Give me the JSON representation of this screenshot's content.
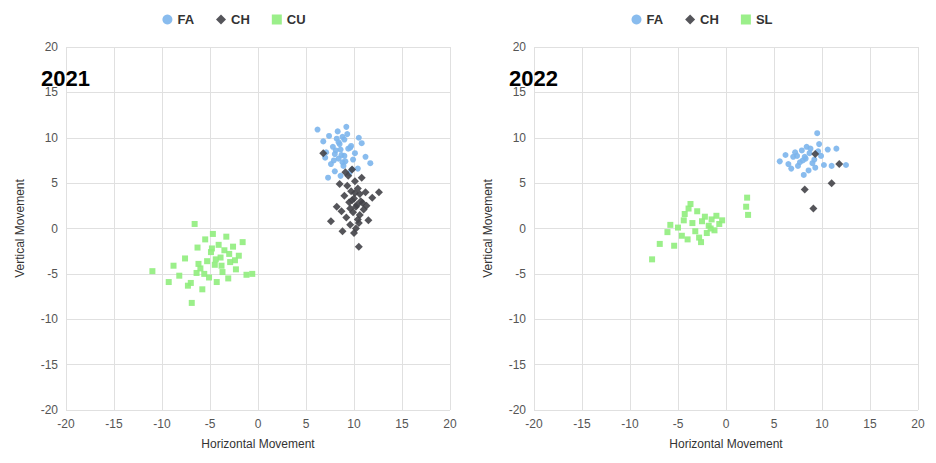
{
  "chart_data": [
    {
      "type": "scatter",
      "title": "2021",
      "x_label": "Horizontal Movement",
      "y_label": "Vertical Movement",
      "xlim": [
        -20,
        20
      ],
      "xticks": [
        -20,
        -15,
        -10,
        -5,
        0,
        5,
        10,
        15,
        20
      ],
      "ylim": [
        -20,
        20
      ],
      "yticks": [
        -20,
        -15,
        -10,
        -5,
        0,
        5,
        10,
        15,
        20
      ],
      "grid": true,
      "legend": "top",
      "series": [
        {
          "name": "FA",
          "color": "#7cb5ec",
          "marker": "circle",
          "x": [
            6.2,
            6.8,
            7.1,
            7.4,
            7.6,
            7.8,
            8.0,
            8.1,
            8.3,
            8.4,
            8.5,
            8.6,
            8.7,
            8.8,
            8.9,
            9.0,
            9.1,
            9.2,
            9.4,
            9.5,
            9.7,
            9.9,
            10.1,
            10.4,
            10.8,
            11.2,
            11.7,
            7.3,
            7.9,
            8.2,
            8.6,
            9.3,
            9.8,
            8.0,
            8.8,
            9.6,
            7.0,
            10.5,
            8.4,
            9.0
          ],
          "values": [
            10.9,
            9.6,
            8.4,
            10.2,
            7.1,
            9.0,
            6.3,
            8.6,
            10.7,
            7.7,
            9.3,
            5.8,
            8.1,
            10.1,
            6.9,
            9.8,
            7.4,
            11.2,
            8.8,
            6.1,
            9.1,
            7.6,
            8.3,
            6.6,
            9.4,
            7.9,
            7.2,
            5.6,
            7.5,
            9.9,
            8.7,
            10.4,
            6.5,
            8.2,
            7.3,
            8.9,
            7.8,
            10.0,
            9.5,
            8.0
          ]
        },
        {
          "name": "CH",
          "color": "#434348",
          "marker": "diamond",
          "x": [
            6.8,
            7.6,
            8.2,
            8.5,
            8.8,
            9.0,
            9.2,
            9.4,
            9.5,
            9.6,
            9.7,
            9.8,
            9.9,
            10.0,
            10.1,
            10.2,
            10.3,
            10.4,
            10.5,
            10.6,
            10.7,
            10.8,
            11.0,
            11.2,
            11.5,
            11.9,
            12.6,
            9.1,
            9.6,
            10.0,
            10.4,
            10.9,
            9.3,
            9.8,
            10.2,
            10.6,
            8.7,
            10.5,
            11.3,
            10.1
          ],
          "values": [
            8.3,
            0.8,
            2.4,
            4.9,
            -0.3,
            3.6,
            1.2,
            5.8,
            2.9,
            0.4,
            4.1,
            6.5,
            1.8,
            3.3,
            5.2,
            0.0,
            2.6,
            4.4,
            -2.0,
            1.5,
            3.0,
            5.6,
            2.1,
            4.0,
            0.9,
            3.4,
            4.0,
            6.2,
            2.2,
            -0.5,
            1.0,
            2.8,
            4.7,
            3.1,
            2.4,
            3.8,
            1.9,
            0.6,
            2.5,
            3.9
          ]
        },
        {
          "name": "CU",
          "color": "#90ed7d",
          "marker": "square",
          "x": [
            -11.0,
            -9.3,
            -8.8,
            -8.2,
            -7.6,
            -7.3,
            -6.9,
            -6.6,
            -6.3,
            -6.0,
            -5.8,
            -5.5,
            -5.3,
            -5.1,
            -4.9,
            -4.7,
            -4.5,
            -4.3,
            -4.1,
            -3.9,
            -3.7,
            -3.5,
            -3.3,
            -3.1,
            -2.9,
            -2.6,
            -2.3,
            -2.0,
            -1.6,
            -1.2,
            -0.6,
            -6.2,
            -5.6,
            -4.4,
            -3.8,
            -3.0,
            -2.4,
            -4.8,
            -7.0,
            -6.4
          ],
          "values": [
            -4.7,
            -5.9,
            -4.1,
            -5.2,
            -3.3,
            -6.3,
            -8.2,
            0.5,
            -2.1,
            -4.4,
            -6.7,
            -1.2,
            -3.6,
            -5.4,
            -2.6,
            -0.6,
            -4.0,
            -5.9,
            -1.8,
            -3.2,
            -4.8,
            -2.4,
            -0.9,
            -5.5,
            -3.7,
            -2.0,
            -4.5,
            -3.0,
            -1.5,
            -5.1,
            -5.0,
            -3.9,
            -5.0,
            -3.4,
            -4.1,
            -2.8,
            -3.5,
            -2.2,
            -6.0,
            -4.9
          ]
        }
      ]
    },
    {
      "type": "scatter",
      "title": "2022",
      "x_label": "Horizontal Movement",
      "y_label": "Vertical Movement",
      "xlim": [
        -20,
        20
      ],
      "xticks": [
        -20,
        -15,
        -10,
        -5,
        0,
        5,
        10,
        15,
        20
      ],
      "ylim": [
        -20,
        20
      ],
      "yticks": [
        -20,
        -15,
        -10,
        -5,
        0,
        5,
        10,
        15,
        20
      ],
      "grid": true,
      "legend": "top",
      "series": [
        {
          "name": "FA",
          "color": "#7cb5ec",
          "marker": "circle",
          "x": [
            5.6,
            6.2,
            6.8,
            7.0,
            7.2,
            7.5,
            7.7,
            7.9,
            8.1,
            8.3,
            8.4,
            8.6,
            8.8,
            9.0,
            9.2,
            9.5,
            9.7,
            9.9,
            10.2,
            10.6,
            11.0,
            11.5,
            12.5,
            7.4,
            8.0,
            8.7,
            9.3,
            6.5,
            8.2,
            9.6
          ],
          "values": [
            7.4,
            8.1,
            6.6,
            7.9,
            8.4,
            6.9,
            7.3,
            8.6,
            5.9,
            7.7,
            9.0,
            6.4,
            8.8,
            7.2,
            7.6,
            10.5,
            9.3,
            8.0,
            7.0,
            8.7,
            6.9,
            8.8,
            7.0,
            8.0,
            7.5,
            8.3,
            6.7,
            7.1,
            7.9,
            8.5
          ]
        },
        {
          "name": "CH",
          "color": "#434348",
          "marker": "diamond",
          "x": [
            9.3,
            8.2,
            9.1,
            11.8,
            11.0
          ],
          "values": [
            8.2,
            4.3,
            2.2,
            7.1,
            5.0
          ]
        },
        {
          "name": "SL",
          "color": "#90ed7d",
          "marker": "square",
          "x": [
            -7.7,
            -6.9,
            -6.1,
            -5.8,
            -5.4,
            -5.0,
            -4.6,
            -4.3,
            -4.0,
            -3.7,
            -3.5,
            -3.2,
            -3.0,
            -2.8,
            -2.5,
            -2.2,
            -2.0,
            -1.8,
            -1.5,
            -1.2,
            -1.0,
            -0.7,
            -0.4,
            2.1,
            2.2,
            2.3,
            -3.9,
            -2.6,
            -1.6,
            -4.4
          ],
          "values": [
            -3.4,
            -1.7,
            -0.4,
            0.4,
            -1.9,
            0.1,
            -0.8,
            1.6,
            -1.2,
            2.7,
            0.6,
            -0.3,
            1.9,
            -1.0,
            0.8,
            1.3,
            -0.5,
            0.3,
            1.0,
            -0.2,
            1.4,
            0.5,
            0.9,
            2.4,
            3.4,
            1.5,
            2.2,
            -1.5,
            0.0,
            0.9
          ]
        }
      ]
    }
  ]
}
